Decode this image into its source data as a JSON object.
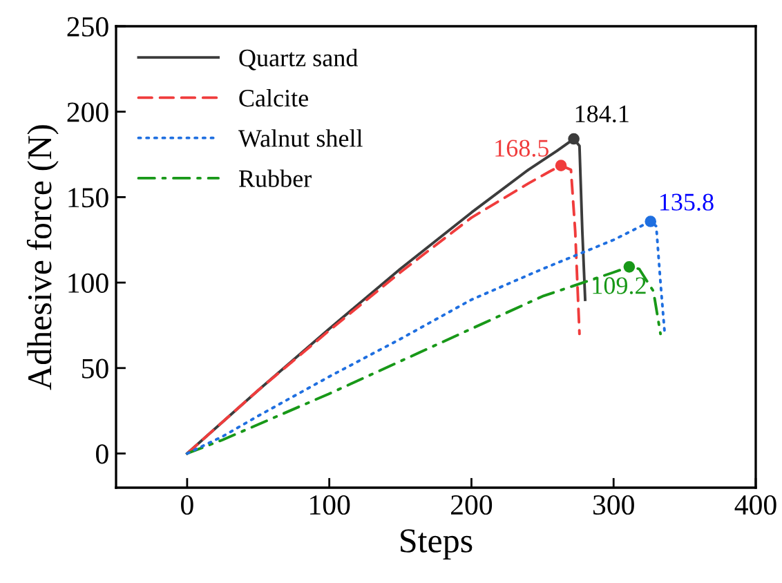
{
  "chart_data": {
    "type": "line",
    "xlabel": "Steps",
    "ylabel": "Adhesive force (N)",
    "xlim": [
      -50,
      400
    ],
    "xticks": [
      0,
      100,
      200,
      300,
      400
    ],
    "ylim": [
      -20,
      250
    ],
    "yticks": [
      0,
      50,
      100,
      150,
      200,
      250
    ],
    "grid": false,
    "legend": "top left",
    "series": [
      {
        "name": "Quartz sand",
        "color": "#3c3c3c",
        "line_style": "solid",
        "x": [
          0,
          50,
          100,
          150,
          200,
          240,
          260,
          272,
          276,
          278,
          280
        ],
        "values": [
          0,
          37,
          73,
          108,
          141,
          166,
          177,
          184.1,
          180,
          130,
          90
        ]
      },
      {
        "name": "Calcite",
        "color": "#f03c3c",
        "line_style": "dashed",
        "x": [
          0,
          50,
          100,
          150,
          200,
          240,
          255,
          263,
          270,
          273,
          276
        ],
        "values": [
          0,
          37,
          72,
          106,
          138,
          158,
          165,
          168.5,
          166,
          130,
          70
        ]
      },
      {
        "name": "Walnut shell",
        "color": "#1f6fe0",
        "line_style": "dotted",
        "x": [
          0,
          25,
          50,
          100,
          150,
          200,
          250,
          300,
          326,
          330,
          333,
          336
        ],
        "values": [
          0,
          10,
          22,
          45,
          67,
          90,
          108,
          125,
          135.8,
          133,
          100,
          70
        ]
      },
      {
        "name": "Rubber",
        "color": "#189818",
        "line_style": "dashdot",
        "x": [
          0,
          25,
          50,
          100,
          150,
          200,
          250,
          300,
          311,
          318,
          328,
          333
        ],
        "values": [
          0,
          8,
          17,
          35,
          54,
          73,
          92,
          106,
          109.2,
          108,
          95,
          70
        ]
      }
    ],
    "annotations": [
      {
        "text": "184.1",
        "x": 272,
        "y": 184.1
      },
      {
        "text": "168.5",
        "x": 263,
        "y": 168.5
      },
      {
        "text": "135.8",
        "x": 326,
        "y": 135.8
      },
      {
        "text": "109.2",
        "x": 311,
        "y": 109.2
      }
    ]
  }
}
